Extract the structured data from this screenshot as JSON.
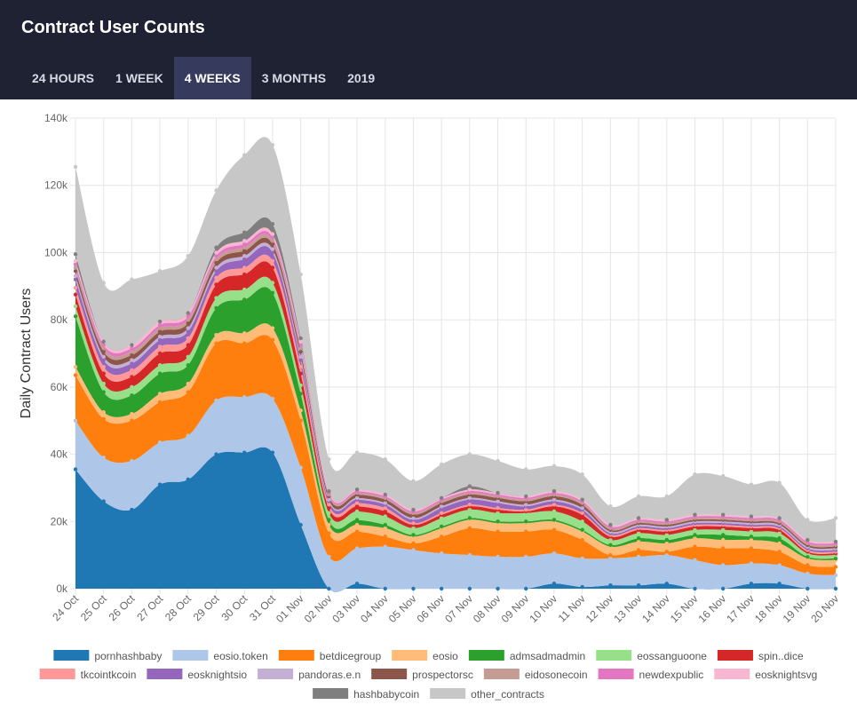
{
  "header": {
    "title": "Contract User Counts",
    "tabs": [
      {
        "label": "24 HOURS",
        "active": false
      },
      {
        "label": "1 WEEK",
        "active": false
      },
      {
        "label": "4 WEEKS",
        "active": true
      },
      {
        "label": "3 MONTHS",
        "active": false
      },
      {
        "label": "2019",
        "active": false
      }
    ]
  },
  "chart_data": {
    "type": "area",
    "stacked": true,
    "ylabel": "Daily Contract Users",
    "ylim": [
      0,
      140000
    ],
    "yticks": [
      0,
      20000,
      40000,
      60000,
      80000,
      100000,
      120000,
      140000
    ],
    "ytick_labels": [
      "0k",
      "20k",
      "40k",
      "60k",
      "80k",
      "100k",
      "120k",
      "140k"
    ],
    "grid": true,
    "legend_position": "bottom",
    "categories": [
      "24 Oct",
      "25 Oct",
      "26 Oct",
      "27 Oct",
      "28 Oct",
      "29 Oct",
      "30 Oct",
      "31 Oct",
      "01 Nov",
      "02 Nov",
      "03 Nov",
      "04 Nov",
      "05 Nov",
      "06 Nov",
      "07 Nov",
      "08 Nov",
      "09 Nov",
      "10 Nov",
      "11 Nov",
      "12 Nov",
      "13 Nov",
      "14 Nov",
      "15 Nov",
      "16 Nov",
      "17 Nov",
      "18 Nov",
      "19 Nov",
      "20 Nov"
    ],
    "series": [
      {
        "name": "pornhashbaby",
        "color": "#1f77b4",
        "values": [
          35500,
          26000,
          23500,
          31000,
          32500,
          40000,
          40500,
          40500,
          19000,
          0,
          1500,
          0,
          0,
          0,
          0,
          0,
          0,
          1500,
          500,
          1000,
          1000,
          1500,
          0,
          0,
          1500,
          1500,
          0,
          0
        ]
      },
      {
        "name": "eosio.token",
        "color": "#aec7e8",
        "values": [
          14500,
          13000,
          14500,
          12500,
          13000,
          16000,
          16500,
          16000,
          17000,
          9500,
          10500,
          12500,
          11500,
          10500,
          10000,
          9500,
          9500,
          9000,
          8500,
          8000,
          8500,
          8500,
          8500,
          7000,
          6000,
          5500,
          4500,
          4000
        ]
      },
      {
        "name": "betdicegroup",
        "color": "#ff7f0e",
        "values": [
          13500,
          11500,
          12000,
          12000,
          13000,
          17000,
          16000,
          17500,
          14000,
          7000,
          5000,
          3000,
          2000,
          5000,
          8000,
          7500,
          7500,
          7000,
          5500,
          1000,
          2000,
          1000,
          4000,
          5000,
          4500,
          4000,
          2500,
          2500
        ]
      },
      {
        "name": "eosio",
        "color": "#ffbb78",
        "values": [
          2500,
          2000,
          2000,
          2500,
          2500,
          2500,
          3000,
          3500,
          3000,
          2500,
          2000,
          2500,
          2000,
          2500,
          2500,
          2500,
          2500,
          2500,
          2500,
          2500,
          2500,
          2500,
          2500,
          2500,
          2500,
          2500,
          2000,
          2000
        ]
      },
      {
        "name": "admsadmadmin",
        "color": "#2ca02c",
        "values": [
          15000,
          6000,
          5500,
          6000,
          5500,
          8000,
          10000,
          10500,
          5000,
          1500,
          1500,
          1000,
          500,
          500,
          500,
          500,
          500,
          500,
          500,
          500,
          1000,
          1000,
          1000,
          1500,
          1000,
          1500,
          500,
          500
        ]
      },
      {
        "name": "eossanguoone",
        "color": "#98df8a",
        "values": [
          3000,
          2500,
          2500,
          2500,
          2500,
          3000,
          3000,
          3000,
          2500,
          2000,
          2500,
          2500,
          2000,
          2500,
          2500,
          2500,
          2500,
          2500,
          2500,
          1500,
          1500,
          1500,
          1500,
          1500,
          1500,
          1500,
          1000,
          1000
        ]
      },
      {
        "name": "spin..dice",
        "color": "#d62728",
        "values": [
          3500,
          3000,
          3000,
          3500,
          3500,
          4000,
          4500,
          4500,
          3500,
          1500,
          1500,
          1500,
          1000,
          1000,
          1000,
          1000,
          500,
          1500,
          2000,
          1000,
          1000,
          1000,
          1000,
          1000,
          1000,
          1000,
          500,
          500
        ]
      },
      {
        "name": "tkcointkcoin",
        "color": "#ff9896",
        "values": [
          2000,
          2000,
          2000,
          2000,
          2000,
          2000,
          2000,
          2000,
          2000,
          1000,
          1000,
          1000,
          500,
          500,
          500,
          500,
          500,
          500,
          500,
          500,
          500,
          500,
          500,
          500,
          500,
          500,
          500,
          500
        ]
      },
      {
        "name": "eosknightsio",
        "color": "#9467bd",
        "values": [
          2500,
          2000,
          2000,
          2000,
          2000,
          2000,
          2500,
          2500,
          2000,
          1000,
          1000,
          1000,
          1000,
          1500,
          1500,
          1500,
          1000,
          1000,
          1000,
          500,
          500,
          500,
          500,
          500,
          500,
          500,
          500,
          500
        ]
      },
      {
        "name": "pandoras.e.n",
        "color": "#c5b0d5",
        "values": [
          1000,
          1000,
          1000,
          1000,
          1000,
          1000,
          1000,
          1000,
          1000,
          500,
          500,
          500,
          500,
          500,
          500,
          500,
          500,
          500,
          500,
          500,
          500,
          500,
          500,
          500,
          500,
          500,
          500,
          500
        ]
      },
      {
        "name": "prospectorsc",
        "color": "#8c564b",
        "values": [
          1500,
          1500,
          1500,
          1500,
          1500,
          1500,
          1500,
          1500,
          1500,
          1000,
          1000,
          1000,
          1000,
          1000,
          1000,
          1000,
          1000,
          1000,
          1000,
          500,
          500,
          500,
          500,
          500,
          500,
          500,
          500,
          500
        ]
      },
      {
        "name": "eidosonecoin",
        "color": "#c49c94",
        "values": [
          1000,
          1000,
          1000,
          1000,
          1000,
          1000,
          1000,
          1000,
          1000,
          500,
          500,
          500,
          500,
          500,
          500,
          500,
          500,
          500,
          500,
          500,
          500,
          500,
          500,
          500,
          500,
          500,
          500,
          500
        ]
      },
      {
        "name": "newdexpublic",
        "color": "#e377c2",
        "values": [
          1000,
          1000,
          1000,
          1000,
          1000,
          1000,
          1000,
          1000,
          1000,
          500,
          500,
          500,
          500,
          500,
          500,
          500,
          500,
          500,
          500,
          500,
          500,
          500,
          500,
          500,
          500,
          500,
          500,
          500
        ]
      },
      {
        "name": "eosknightsvg",
        "color": "#f7b6d2",
        "values": [
          1000,
          1000,
          1000,
          1000,
          1000,
          1000,
          1000,
          1000,
          1000,
          500,
          500,
          500,
          500,
          500,
          500,
          500,
          500,
          500,
          500,
          500,
          500,
          500,
          500,
          500,
          500,
          500,
          500,
          500
        ]
      },
      {
        "name": "hashbabycoin",
        "color": "#7f7f7f",
        "values": [
          2000,
          0,
          0,
          0,
          0,
          1500,
          2500,
          3000,
          1000,
          0,
          0,
          0,
          0,
          0,
          1000,
          0,
          0,
          0,
          0,
          0,
          0,
          0,
          0,
          0,
          0,
          0,
          0,
          0
        ]
      },
      {
        "name": "other_contracts",
        "color": "#c7c7c7",
        "values": [
          26000,
          17500,
          19500,
          15000,
          17000,
          17000,
          23000,
          23500,
          19000,
          9500,
          11000,
          10500,
          8500,
          10000,
          9500,
          9500,
          8000,
          7500,
          7500,
          5500,
          6500,
          7000,
          12000,
          11500,
          9500,
          10500,
          6000,
          7000
        ]
      }
    ]
  }
}
